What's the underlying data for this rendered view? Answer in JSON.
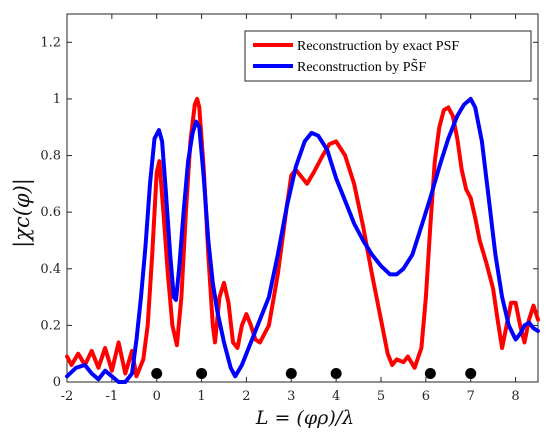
{
  "chart_data": {
    "type": "line",
    "xlabel": "L = (φρ)/λ",
    "ylabel": "|χc(φ)|",
    "xlim": [
      -2,
      8.5
    ],
    "ylim": [
      0,
      1.3
    ],
    "x_ticks": [
      -2,
      -1,
      0,
      1,
      2,
      3,
      4,
      5,
      6,
      7,
      8
    ],
    "y_ticks": [
      0,
      0.2,
      0.4,
      0.6,
      0.8,
      1,
      1.2
    ],
    "y_tick_labels": [
      "0",
      "0.2",
      "0.4",
      "0.6",
      "0.8",
      "1",
      "1.2"
    ],
    "grid": false,
    "legend_position": "top-right",
    "series": [
      {
        "name": "Reconstruction by exact PSF",
        "color": "#ff0000",
        "points": [
          [
            -2.0,
            0.09
          ],
          [
            -1.9,
            0.06
          ],
          [
            -1.75,
            0.1
          ],
          [
            -1.6,
            0.06
          ],
          [
            -1.45,
            0.11
          ],
          [
            -1.3,
            0.05
          ],
          [
            -1.15,
            0.12
          ],
          [
            -1.0,
            0.04
          ],
          [
            -0.85,
            0.14
          ],
          [
            -0.7,
            0.03
          ],
          [
            -0.55,
            0.11
          ],
          [
            -0.45,
            0.02
          ],
          [
            -0.3,
            0.08
          ],
          [
            -0.2,
            0.2
          ],
          [
            -0.1,
            0.45
          ],
          [
            0.0,
            0.74
          ],
          [
            0.06,
            0.78
          ],
          [
            0.15,
            0.6
          ],
          [
            0.25,
            0.38
          ],
          [
            0.35,
            0.2
          ],
          [
            0.45,
            0.13
          ],
          [
            0.55,
            0.3
          ],
          [
            0.65,
            0.6
          ],
          [
            0.75,
            0.85
          ],
          [
            0.85,
            0.98
          ],
          [
            0.9,
            1.0
          ],
          [
            0.95,
            0.97
          ],
          [
            1.05,
            0.75
          ],
          [
            1.15,
            0.45
          ],
          [
            1.25,
            0.2
          ],
          [
            1.3,
            0.14
          ],
          [
            1.4,
            0.3
          ],
          [
            1.5,
            0.35
          ],
          [
            1.6,
            0.28
          ],
          [
            1.7,
            0.14
          ],
          [
            1.8,
            0.12
          ],
          [
            1.9,
            0.2
          ],
          [
            2.0,
            0.24
          ],
          [
            2.1,
            0.2
          ],
          [
            2.2,
            0.15
          ],
          [
            2.3,
            0.14
          ],
          [
            2.5,
            0.2
          ],
          [
            2.7,
            0.38
          ],
          [
            2.9,
            0.62
          ],
          [
            3.0,
            0.73
          ],
          [
            3.1,
            0.75
          ],
          [
            3.2,
            0.73
          ],
          [
            3.35,
            0.7
          ],
          [
            3.5,
            0.74
          ],
          [
            3.7,
            0.8
          ],
          [
            3.85,
            0.84
          ],
          [
            4.0,
            0.85
          ],
          [
            4.2,
            0.8
          ],
          [
            4.4,
            0.7
          ],
          [
            4.6,
            0.55
          ],
          [
            4.8,
            0.38
          ],
          [
            5.0,
            0.22
          ],
          [
            5.15,
            0.1
          ],
          [
            5.25,
            0.06
          ],
          [
            5.35,
            0.08
          ],
          [
            5.5,
            0.07
          ],
          [
            5.6,
            0.09
          ],
          [
            5.75,
            0.05
          ],
          [
            5.9,
            0.12
          ],
          [
            6.0,
            0.3
          ],
          [
            6.1,
            0.55
          ],
          [
            6.2,
            0.78
          ],
          [
            6.3,
            0.9
          ],
          [
            6.4,
            0.96
          ],
          [
            6.5,
            0.97
          ],
          [
            6.6,
            0.94
          ],
          [
            6.7,
            0.86
          ],
          [
            6.8,
            0.75
          ],
          [
            6.9,
            0.68
          ],
          [
            7.0,
            0.65
          ],
          [
            7.1,
            0.58
          ],
          [
            7.2,
            0.5
          ],
          [
            7.35,
            0.42
          ],
          [
            7.5,
            0.33
          ],
          [
            7.6,
            0.22
          ],
          [
            7.7,
            0.12
          ],
          [
            7.8,
            0.2
          ],
          [
            7.9,
            0.28
          ],
          [
            8.0,
            0.28
          ],
          [
            8.1,
            0.2
          ],
          [
            8.2,
            0.14
          ],
          [
            8.3,
            0.22
          ],
          [
            8.4,
            0.27
          ],
          [
            8.5,
            0.22
          ]
        ]
      },
      {
        "name": "Reconstruction by PS̃F",
        "color": "#0000ff",
        "points": [
          [
            -2.0,
            0.02
          ],
          [
            -1.8,
            0.05
          ],
          [
            -1.6,
            0.06
          ],
          [
            -1.45,
            0.03
          ],
          [
            -1.3,
            0.01
          ],
          [
            -1.15,
            0.04
          ],
          [
            -1.0,
            0.02
          ],
          [
            -0.85,
            0.0
          ],
          [
            -0.7,
            0.0
          ],
          [
            -0.55,
            0.03
          ],
          [
            -0.45,
            0.15
          ],
          [
            -0.35,
            0.3
          ],
          [
            -0.25,
            0.48
          ],
          [
            -0.15,
            0.7
          ],
          [
            -0.05,
            0.86
          ],
          [
            0.05,
            0.89
          ],
          [
            0.12,
            0.85
          ],
          [
            0.2,
            0.68
          ],
          [
            0.3,
            0.45
          ],
          [
            0.38,
            0.3
          ],
          [
            0.43,
            0.29
          ],
          [
            0.5,
            0.4
          ],
          [
            0.6,
            0.6
          ],
          [
            0.7,
            0.78
          ],
          [
            0.8,
            0.88
          ],
          [
            0.88,
            0.92
          ],
          [
            0.95,
            0.9
          ],
          [
            1.05,
            0.72
          ],
          [
            1.15,
            0.5
          ],
          [
            1.25,
            0.35
          ],
          [
            1.35,
            0.25
          ],
          [
            1.5,
            0.14
          ],
          [
            1.65,
            0.05
          ],
          [
            1.75,
            0.02
          ],
          [
            1.9,
            0.06
          ],
          [
            2.1,
            0.14
          ],
          [
            2.3,
            0.22
          ],
          [
            2.5,
            0.3
          ],
          [
            2.7,
            0.45
          ],
          [
            2.9,
            0.62
          ],
          [
            3.1,
            0.76
          ],
          [
            3.3,
            0.85
          ],
          [
            3.45,
            0.88
          ],
          [
            3.6,
            0.87
          ],
          [
            3.8,
            0.82
          ],
          [
            4.0,
            0.72
          ],
          [
            4.2,
            0.64
          ],
          [
            4.4,
            0.56
          ],
          [
            4.6,
            0.5
          ],
          [
            4.8,
            0.45
          ],
          [
            5.0,
            0.41
          ],
          [
            5.2,
            0.38
          ],
          [
            5.35,
            0.38
          ],
          [
            5.5,
            0.4
          ],
          [
            5.7,
            0.45
          ],
          [
            5.9,
            0.55
          ],
          [
            6.1,
            0.65
          ],
          [
            6.3,
            0.76
          ],
          [
            6.5,
            0.86
          ],
          [
            6.7,
            0.94
          ],
          [
            6.85,
            0.98
          ],
          [
            7.0,
            1.0
          ],
          [
            7.1,
            0.97
          ],
          [
            7.25,
            0.85
          ],
          [
            7.4,
            0.65
          ],
          [
            7.55,
            0.45
          ],
          [
            7.7,
            0.3
          ],
          [
            7.85,
            0.2
          ],
          [
            8.0,
            0.15
          ],
          [
            8.1,
            0.17
          ],
          [
            8.2,
            0.2
          ],
          [
            8.3,
            0.21
          ],
          [
            8.4,
            0.19
          ],
          [
            8.5,
            0.18
          ]
        ]
      }
    ],
    "markers": {
      "color": "#000000",
      "points": [
        [
          0,
          0.03
        ],
        [
          1,
          0.03
        ],
        [
          3,
          0.03
        ],
        [
          4,
          0.03
        ],
        [
          6.1,
          0.03
        ],
        [
          7,
          0.03
        ]
      ]
    }
  }
}
